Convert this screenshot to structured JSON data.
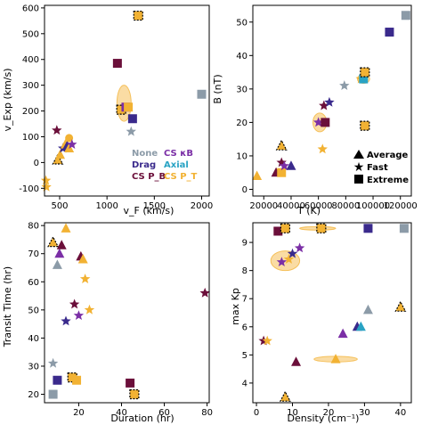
{
  "colors": {
    "none": "#8C9BA8",
    "drag": "#3A2A8C",
    "cs_pb": "#6B0F3A",
    "cs_kb": "#7B2FA6",
    "axial": "#29A3C4",
    "cs_pt": "#F2B233",
    "highlight": "#F5C05A"
  },
  "chart_data": [
    {
      "type": "scatter",
      "xlabel": "v_F (km/s)",
      "ylabel": "v_Exp (km/s)",
      "xlim": [
        340,
        2080
      ],
      "ylim": [
        -130,
        610
      ],
      "xticks": [
        500,
        1000,
        1500,
        2000
      ],
      "yticks": [
        -100,
        0,
        100,
        200,
        300,
        400,
        500,
        600
      ],
      "legend": {
        "placement": "bottom-right",
        "rows": [
          [
            "None",
            "CS κB"
          ],
          [
            "Drag",
            "Axial"
          ],
          [
            "CS P_B",
            "CS P_T"
          ]
        ]
      },
      "highlights": [
        {
          "cx": 1180,
          "cy": 230,
          "rx": 75,
          "ry": 70
        }
      ],
      "points": [
        {
          "x": 355,
          "y": -70,
          "m": "star",
          "c": "cs_pt"
        },
        {
          "x": 360,
          "y": -95,
          "m": "star",
          "c": "cs_pt"
        },
        {
          "x": 470,
          "y": 125,
          "m": "star",
          "c": "cs_pb"
        },
        {
          "x": 480,
          "y": 10,
          "m": "triangle",
          "c": "cs_pt",
          "o": true
        },
        {
          "x": 505,
          "y": 30,
          "m": "triangle",
          "c": "cs_pt"
        },
        {
          "x": 535,
          "y": 55,
          "m": "star",
          "c": "drag"
        },
        {
          "x": 560,
          "y": 70,
          "m": "triangle",
          "c": "cs_pt"
        },
        {
          "x": 580,
          "y": 65,
          "m": "triangle",
          "c": "drag"
        },
        {
          "x": 600,
          "y": 55,
          "m": "triangle",
          "c": "cs_pt"
        },
        {
          "x": 600,
          "y": 95,
          "m": "circle",
          "c": "cs_pt"
        },
        {
          "x": 630,
          "y": 70,
          "m": "star",
          "c": "cs_kb"
        },
        {
          "x": 1110,
          "y": 385,
          "m": "square",
          "c": "cs_pb"
        },
        {
          "x": 1150,
          "y": 205,
          "m": "square",
          "c": "cs_pt",
          "o": true
        },
        {
          "x": 1200,
          "y": 215,
          "m": "square",
          "c": "cs_kb"
        },
        {
          "x": 1225,
          "y": 215,
          "m": "square",
          "c": "cs_pt"
        },
        {
          "x": 1255,
          "y": 120,
          "m": "star",
          "c": "none"
        },
        {
          "x": 1270,
          "y": 170,
          "m": "square",
          "c": "drag"
        },
        {
          "x": 1330,
          "y": 570,
          "m": "square",
          "c": "cs_pt",
          "o": true
        },
        {
          "x": 2000,
          "y": 265,
          "m": "square",
          "c": "none"
        }
      ]
    },
    {
      "type": "scatter",
      "xlabel": "T (K)",
      "ylabel": "B (nT)",
      "xlim": [
        12000,
        128000
      ],
      "ylim": [
        -2,
        55
      ],
      "xticks": [
        20000,
        40000,
        60000,
        80000,
        100000,
        120000
      ],
      "yticks": [
        0,
        10,
        20,
        30,
        40,
        50
      ],
      "legend": {
        "placement": "bottom-right",
        "rows": [
          "Average",
          "Fast",
          "Extreme"
        ]
      },
      "highlights": [
        {
          "cx": 61000,
          "cy": 20,
          "rx": 5000,
          "ry": 2.8
        },
        {
          "cx": 93000,
          "cy": 33,
          "rx": 4500,
          "ry": 1.3
        }
      ],
      "points": [
        {
          "x": 15000,
          "y": 4,
          "m": "triangle",
          "c": "cs_pt"
        },
        {
          "x": 29000,
          "y": 5,
          "m": "triangle",
          "c": "cs_pb"
        },
        {
          "x": 33000,
          "y": 13,
          "m": "triangle",
          "c": "cs_pt",
          "o": true
        },
        {
          "x": 33000,
          "y": 8,
          "m": "star",
          "c": "cs_pb"
        },
        {
          "x": 33000,
          "y": 5,
          "m": "square",
          "c": "cs_pt"
        },
        {
          "x": 35000,
          "y": 7,
          "m": "star",
          "c": "cs_kb"
        },
        {
          "x": 40000,
          "y": 7,
          "m": "triangle",
          "c": "drag"
        },
        {
          "x": 60000,
          "y": 20,
          "m": "star",
          "c": "cs_kb"
        },
        {
          "x": 63000,
          "y": 12,
          "m": "star",
          "c": "cs_pt"
        },
        {
          "x": 64000,
          "y": 25,
          "m": "star",
          "c": "cs_pb"
        },
        {
          "x": 65000,
          "y": 20,
          "m": "square",
          "c": "cs_pb"
        },
        {
          "x": 68000,
          "y": 26,
          "m": "star",
          "c": "drag"
        },
        {
          "x": 79000,
          "y": 31,
          "m": "star",
          "c": "none"
        },
        {
          "x": 91000,
          "y": 33,
          "m": "star",
          "c": "cs_pt"
        },
        {
          "x": 93000,
          "y": 33,
          "m": "square",
          "c": "axial"
        },
        {
          "x": 94000,
          "y": 35,
          "m": "square",
          "c": "cs_pt",
          "o": true
        },
        {
          "x": 94000,
          "y": 19,
          "m": "square",
          "c": "cs_pt",
          "o": true
        },
        {
          "x": 112000,
          "y": 47,
          "m": "square",
          "c": "drag"
        },
        {
          "x": 124000,
          "y": 52,
          "m": "square",
          "c": "none"
        }
      ]
    },
    {
      "type": "scatter",
      "xlabel": "Duration (hr)",
      "ylabel": "Transit Time (hr)",
      "xlim": [
        4,
        81
      ],
      "ylim": [
        17,
        81
      ],
      "xticks": [
        20,
        40,
        60,
        80
      ],
      "yticks": [
        20,
        30,
        40,
        50,
        60,
        70,
        80
      ],
      "highlights": [],
      "points": [
        {
          "x": 8,
          "y": 74,
          "m": "triangle",
          "c": "cs_pt",
          "o": true
        },
        {
          "x": 8,
          "y": 31,
          "m": "star",
          "c": "none"
        },
        {
          "x": 8,
          "y": 20,
          "m": "square",
          "c": "none"
        },
        {
          "x": 10,
          "y": 66,
          "m": "triangle",
          "c": "none"
        },
        {
          "x": 10,
          "y": 25,
          "m": "square",
          "c": "drag"
        },
        {
          "x": 11,
          "y": 70,
          "m": "triangle",
          "c": "cs_kb"
        },
        {
          "x": 12,
          "y": 73,
          "m": "triangle",
          "c": "cs_pb"
        },
        {
          "x": 14,
          "y": 79,
          "m": "triangle",
          "c": "cs_pt"
        },
        {
          "x": 14,
          "y": 46,
          "m": "star",
          "c": "drag"
        },
        {
          "x": 17,
          "y": 26,
          "m": "square",
          "c": "cs_pt",
          "o": true
        },
        {
          "x": 18,
          "y": 52,
          "m": "star",
          "c": "cs_pb"
        },
        {
          "x": 19,
          "y": 25,
          "m": "square",
          "c": "cs_pt"
        },
        {
          "x": 20,
          "y": 48,
          "m": "star",
          "c": "cs_kb"
        },
        {
          "x": 21,
          "y": 69,
          "m": "triangle",
          "c": "cs_pb"
        },
        {
          "x": 22,
          "y": 68,
          "m": "triangle",
          "c": "cs_pt"
        },
        {
          "x": 23,
          "y": 61,
          "m": "star",
          "c": "cs_pt"
        },
        {
          "x": 25,
          "y": 50,
          "m": "star",
          "c": "cs_pt"
        },
        {
          "x": 44,
          "y": 24,
          "m": "square",
          "c": "cs_pb"
        },
        {
          "x": 46,
          "y": 20,
          "m": "square",
          "c": "cs_pt",
          "o": true
        },
        {
          "x": 79,
          "y": 56,
          "m": "star",
          "c": "cs_pb"
        }
      ]
    },
    {
      "type": "scatter",
      "xlabel": "Density (cm⁻¹)",
      "ylabel": "max Kp",
      "xlim": [
        -1,
        43
      ],
      "ylim": [
        3.3,
        9.7
      ],
      "xticks": [
        0,
        10,
        20,
        30,
        40
      ],
      "yticks": [
        4,
        5,
        6,
        7,
        8,
        9
      ],
      "highlights": [
        {
          "cx": 8,
          "cy": 8.35,
          "rx": 4,
          "ry": 0.35
        },
        {
          "cx": 22,
          "cy": 4.85,
          "rx": 6,
          "ry": 0.1
        },
        {
          "cx": 17,
          "cy": 9.5,
          "rx": 5,
          "ry": 0.06
        }
      ],
      "points": [
        {
          "x": 2,
          "y": 5.5,
          "m": "star",
          "c": "cs_pb"
        },
        {
          "x": 3,
          "y": 5.5,
          "m": "star",
          "c": "cs_pt"
        },
        {
          "x": 6,
          "y": 9.4,
          "m": "square",
          "c": "cs_pb"
        },
        {
          "x": 7,
          "y": 8.3,
          "m": "star",
          "c": "cs_kb"
        },
        {
          "x": 8,
          "y": 3.5,
          "m": "triangle",
          "c": "cs_pt",
          "o": true
        },
        {
          "x": 8,
          "y": 9.5,
          "m": "square",
          "c": "cs_pt",
          "o": true
        },
        {
          "x": 9,
          "y": 8.4,
          "m": "star",
          "c": "cs_pt"
        },
        {
          "x": 10,
          "y": 8.6,
          "m": "star",
          "c": "drag"
        },
        {
          "x": 11,
          "y": 4.75,
          "m": "triangle",
          "c": "cs_pb"
        },
        {
          "x": 12,
          "y": 8.8,
          "m": "star",
          "c": "cs_kb"
        },
        {
          "x": 18,
          "y": 9.5,
          "m": "square",
          "c": "cs_pt",
          "o": true
        },
        {
          "x": 22,
          "y": 4.85,
          "m": "triangle",
          "c": "cs_pt"
        },
        {
          "x": 24,
          "y": 5.75,
          "m": "triangle",
          "c": "cs_kb"
        },
        {
          "x": 28,
          "y": 6.0,
          "m": "triangle",
          "c": "drag"
        },
        {
          "x": 29,
          "y": 6.0,
          "m": "triangle",
          "c": "axial"
        },
        {
          "x": 31,
          "y": 6.6,
          "m": "triangle",
          "c": "none"
        },
        {
          "x": 31,
          "y": 9.5,
          "m": "square",
          "c": "drag"
        },
        {
          "x": 40,
          "y": 6.7,
          "m": "triangle",
          "c": "cs_pt",
          "o": true
        },
        {
          "x": 41,
          "y": 9.5,
          "m": "square",
          "c": "none"
        }
      ]
    }
  ]
}
